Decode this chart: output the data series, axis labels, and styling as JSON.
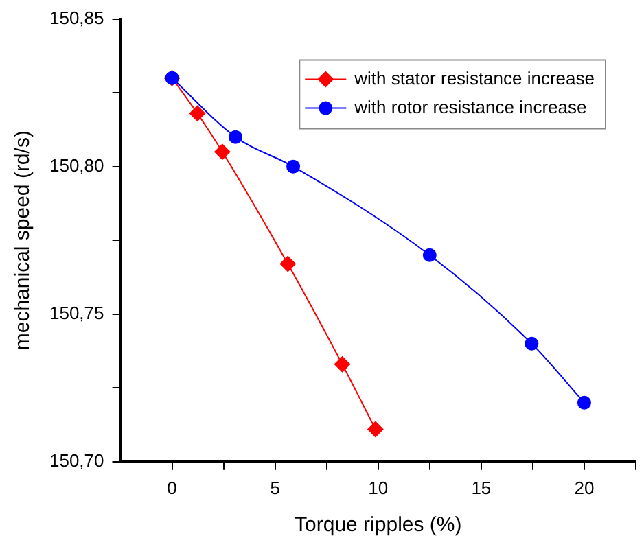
{
  "chart_data": {
    "type": "line",
    "xlabel": "Torque ripples (%)",
    "ylabel": "mechanical speed (rd/s)",
    "series": [
      {
        "name": "with stator resistance increase",
        "color": "#ff0000",
        "marker": "diamond",
        "x": [
          0,
          1.23,
          2.44,
          5.62,
          8.26,
          9.87
        ],
        "values": [
          150.83,
          150.818,
          150.805,
          150.767,
          150.733,
          150.711
        ]
      },
      {
        "name": "with rotor resistance increase",
        "color": "#0000ff",
        "marker": "circle",
        "x": [
          0,
          3.08,
          5.88,
          12.5,
          17.45,
          20
        ],
        "values": [
          150.83,
          150.81,
          150.8,
          150.77,
          150.74,
          150.72
        ]
      }
    ],
    "xlim": [
      -2.5,
      22.5
    ],
    "xticks": [
      0,
      {
        "value": 2.5,
        "label": null
      },
      5,
      {
        "value": 7.5,
        "label": null
      },
      10,
      {
        "value": 12.5,
        "label": null
      },
      15,
      {
        "value": 17.5,
        "label": null
      },
      20,
      {
        "value": 22.5,
        "label": null
      }
    ],
    "ylim": [
      150.7,
      150.85
    ],
    "yticks": [
      {
        "value": 150.7,
        "label": "150,70"
      },
      {
        "value": 150.725,
        "label": null
      },
      {
        "value": 150.75,
        "label": "150,75"
      },
      {
        "value": 150.775,
        "label": null
      },
      {
        "value": 150.8,
        "label": "150,80"
      },
      {
        "value": 150.825,
        "label": null
      },
      {
        "value": 150.85,
        "label": "150,85"
      }
    ],
    "grid": false,
    "legend": "top right"
  }
}
